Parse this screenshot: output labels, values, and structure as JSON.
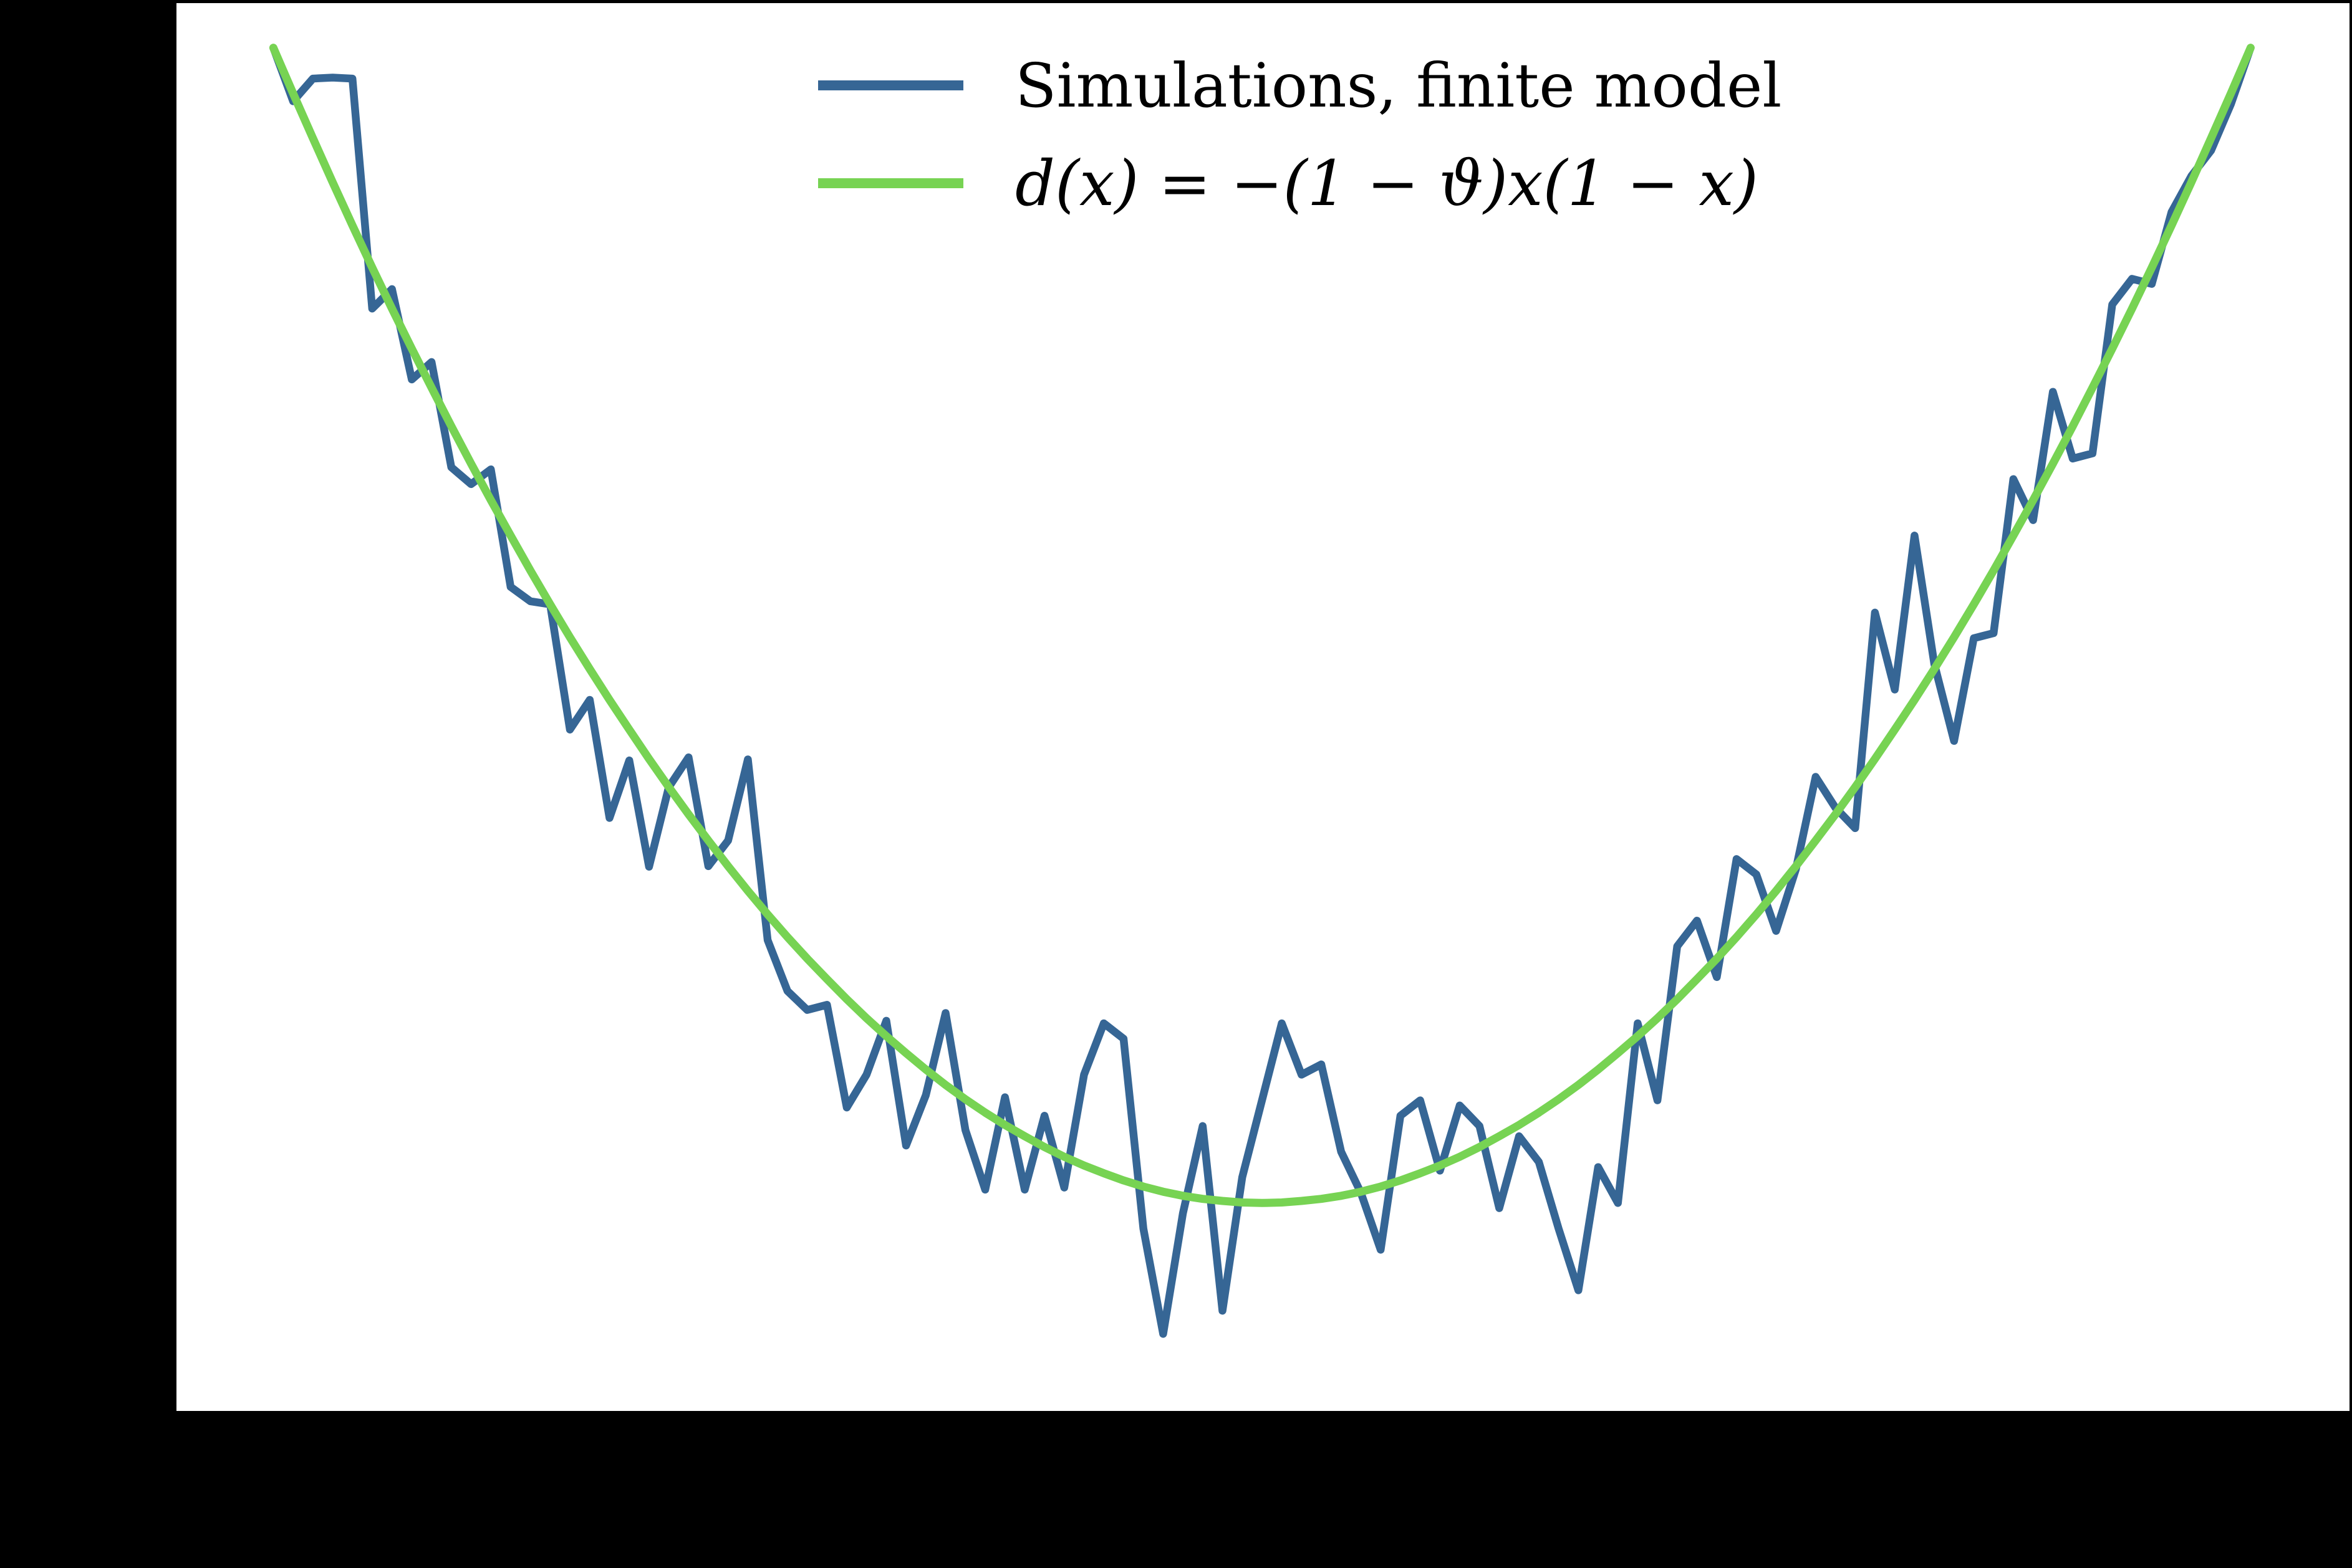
{
  "figure": {
    "background_color": "#000000",
    "plot_background_color": "#ffffff"
  },
  "legend": {
    "position": "upper center, inside plot",
    "frame": false,
    "items": [
      {
        "label": "Simulations, finite model",
        "color": "#366695"
      },
      {
        "label": "d(x) = −(1 − ϑ)x(1 − x)",
        "color": "#77d353"
      }
    ]
  },
  "chart_data": {
    "type": "line",
    "title": "",
    "xlabel": "",
    "ylabel": "",
    "grid": false,
    "xlim": [
      -0.049,
      1.05
    ],
    "ylim": [
      -0.2655,
      0.0087
    ],
    "tick_labels_visible": false,
    "x": [
      0.0,
      0.01,
      0.02,
      0.03,
      0.04,
      0.05,
      0.06,
      0.07,
      0.08,
      0.09,
      0.1,
      0.11,
      0.12,
      0.13,
      0.14,
      0.15,
      0.16,
      0.17,
      0.18,
      0.19,
      0.2,
      0.21,
      0.22,
      0.23,
      0.24,
      0.25,
      0.26,
      0.27,
      0.28,
      0.29,
      0.3,
      0.31,
      0.32,
      0.33,
      0.34,
      0.35,
      0.36,
      0.37,
      0.38,
      0.39,
      0.4,
      0.41,
      0.42,
      0.43,
      0.44,
      0.45,
      0.46,
      0.47,
      0.48,
      0.49,
      0.5,
      0.51,
      0.52,
      0.53,
      0.54,
      0.55,
      0.56,
      0.57,
      0.58,
      0.59,
      0.6,
      0.61,
      0.62,
      0.63,
      0.64,
      0.65,
      0.66,
      0.67,
      0.68,
      0.69,
      0.7,
      0.71,
      0.72,
      0.73,
      0.74,
      0.75,
      0.76,
      0.77,
      0.78,
      0.79,
      0.8,
      0.81,
      0.82,
      0.83,
      0.84,
      0.85,
      0.86,
      0.87,
      0.88,
      0.89,
      0.9,
      0.91,
      0.92,
      0.93,
      0.94,
      0.95,
      0.96,
      0.97,
      0.98,
      0.99,
      1.0
    ],
    "series": [
      {
        "name": "Simulations, finite model",
        "color": "#366695",
        "y": [
          0.0,
          -0.0104,
          -0.006,
          -0.0058,
          -0.006,
          -0.0508,
          -0.047,
          -0.0646,
          -0.0612,
          -0.0817,
          -0.085,
          -0.0821,
          -0.105,
          -0.1078,
          -0.1084,
          -0.1328,
          -0.127,
          -0.15,
          -0.1388,
          -0.1595,
          -0.144,
          -0.1382,
          -0.1594,
          -0.1544,
          -0.1386,
          -0.1738,
          -0.1837,
          -0.1874,
          -0.1864,
          -0.2064,
          -0.2,
          -0.1895,
          -0.2138,
          -0.204,
          -0.188,
          -0.2108,
          -0.2224,
          -0.2044,
          -0.2224,
          -0.208,
          -0.222,
          -0.2,
          -0.19,
          -0.193,
          -0.23,
          -0.2505,
          -0.227,
          -0.21,
          -0.246,
          -0.22,
          -0.205,
          -0.19,
          -0.2,
          -0.198,
          -0.215,
          -0.223,
          -0.2341,
          -0.208,
          -0.205,
          -0.2187,
          -0.206,
          -0.21,
          -0.226,
          -0.212,
          -0.217,
          -0.23,
          -0.242,
          -0.218,
          -0.225,
          -0.19,
          -0.205,
          -0.175,
          -0.17,
          -0.181,
          -0.158,
          -0.161,
          -0.172,
          -0.16,
          -0.142,
          -0.148,
          -0.152,
          -0.11,
          -0.125,
          -0.095,
          -0.12,
          -0.135,
          -0.115,
          -0.114,
          -0.084,
          -0.092,
          -0.067,
          -0.08,
          -0.079,
          -0.05,
          -0.045,
          -0.046,
          -0.032,
          -0.025,
          -0.02,
          -0.011,
          0.0
        ]
      },
      {
        "name": "d(x) = −(1 − ϑ)x(1 − x)",
        "color": "#77d353",
        "y": [
          0.0,
          -0.0089,
          -0.0176,
          -0.0262,
          -0.0346,
          -0.0428,
          -0.0508,
          -0.0586,
          -0.0662,
          -0.0737,
          -0.081,
          -0.0881,
          -0.095,
          -0.1018,
          -0.1084,
          -0.1148,
          -0.121,
          -0.127,
          -0.1328,
          -0.1385,
          -0.144,
          -0.1493,
          -0.1544,
          -0.1594,
          -0.1642,
          -0.1688,
          -0.1732,
          -0.1774,
          -0.1814,
          -0.1853,
          -0.189,
          -0.1925,
          -0.1958,
          -0.199,
          -0.202,
          -0.2048,
          -0.2074,
          -0.2098,
          -0.212,
          -0.2141,
          -0.216,
          -0.2177,
          -0.2192,
          -0.2206,
          -0.2218,
          -0.2228,
          -0.2236,
          -0.2242,
          -0.2246,
          -0.2249,
          -0.225,
          -0.2249,
          -0.2246,
          -0.2242,
          -0.2236,
          -0.2228,
          -0.2218,
          -0.2206,
          -0.2192,
          -0.2177,
          -0.216,
          -0.2141,
          -0.212,
          -0.2098,
          -0.2074,
          -0.2048,
          -0.202,
          -0.199,
          -0.1958,
          -0.1925,
          -0.189,
          -0.1853,
          -0.1814,
          -0.1774,
          -0.1732,
          -0.1688,
          -0.1642,
          -0.1594,
          -0.1544,
          -0.1493,
          -0.144,
          -0.1385,
          -0.1328,
          -0.127,
          -0.121,
          -0.1148,
          -0.1084,
          -0.1018,
          -0.095,
          -0.0881,
          -0.081,
          -0.0737,
          -0.0662,
          -0.0586,
          -0.0508,
          -0.0428,
          -0.0346,
          -0.0262,
          -0.0176,
          -0.0089,
          0.0
        ]
      }
    ]
  }
}
